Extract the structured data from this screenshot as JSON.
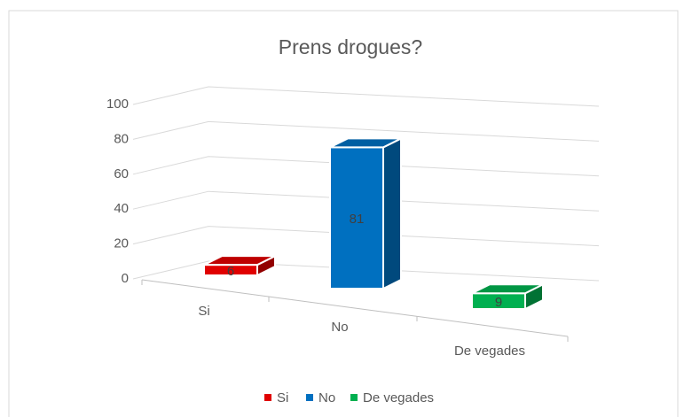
{
  "chart_data": {
    "type": "bar3d",
    "title": "Prens drogues?",
    "categories": [
      "Si",
      "No",
      "De vegades"
    ],
    "values": [
      6,
      81,
      9
    ],
    "colors": [
      "#e00000",
      "#0070c0",
      "#00b050"
    ],
    "ylim": [
      0,
      100
    ],
    "yticks": [
      0,
      20,
      40,
      60,
      80,
      100
    ],
    "grid": true,
    "legend": "bottom"
  }
}
